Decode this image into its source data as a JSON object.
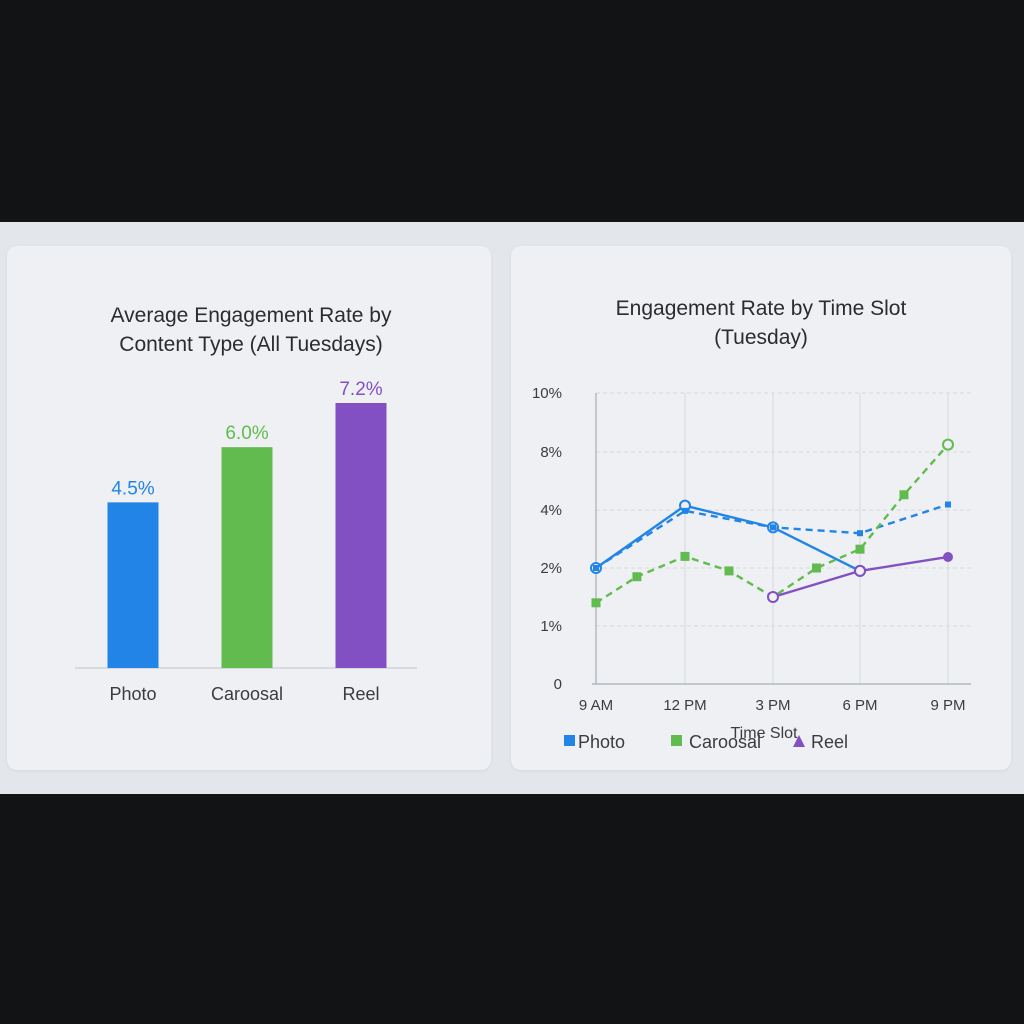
{
  "chart_data": [
    {
      "type": "bar",
      "title_lines": [
        "Average Engagement Rate by",
        "Content Type (All Tuesdays)"
      ],
      "categories": [
        "Photo",
        "Caroosal",
        "Reel"
      ],
      "values": [
        4.5,
        6.0,
        7.2
      ],
      "value_labels": [
        "4.5%",
        "6.0%",
        "7.2%"
      ],
      "colors": [
        "#2184e6",
        "#62bb4f",
        "#8350c4"
      ],
      "xlabel": "",
      "ylabel": "",
      "grid": false
    },
    {
      "type": "line",
      "title_lines": [
        "Engagement Rate by Time Slot",
        "(Tuesday)"
      ],
      "x": [
        "9 AM",
        "12 PM",
        "3 PM",
        "6 PM",
        "9 PM"
      ],
      "y_tick_labels": [
        "0",
        "1%",
        "2%",
        "4%",
        "8%",
        "10%"
      ],
      "xlabel": "Time Slot",
      "ylabel": "",
      "grid": true,
      "legend_position": "bottom",
      "legend": [
        {
          "label": "Photo",
          "marker": "square",
          "color": "#2184e6"
        },
        {
          "label": "Caroosal",
          "marker": "square",
          "color": "#62bb4f"
        },
        {
          "label": "Reel",
          "marker": "triangle",
          "color": "#8350c4"
        }
      ],
      "series": [
        {
          "color": "#2184e6",
          "style": "solid",
          "marker": "open-circle",
          "points": [
            [
              0,
              2.0
            ],
            [
              1,
              4.3
            ],
            [
              2,
              3.4
            ],
            [
              3,
              1.95
            ]
          ]
        },
        {
          "color": "#2184e6",
          "style": "dashed",
          "marker": "small-marker",
          "points": [
            [
              0,
              2.0
            ],
            [
              1,
              3.97
            ],
            [
              2,
              3.4
            ],
            [
              3,
              3.2
            ],
            [
              4,
              4.38
            ]
          ]
        },
        {
          "color": "#62bb4f",
          "style": "dashed",
          "marker": "square",
          "points": [
            [
              0,
              1.4
            ],
            [
              0.46,
              1.85
            ],
            [
              1,
              2.4
            ],
            [
              1.5,
              1.95
            ],
            [
              2,
              1.5
            ],
            [
              2.5,
              2.0
            ],
            [
              3,
              2.65
            ],
            [
              3.5,
              5.05
            ],
            [
              4,
              8.25
            ]
          ]
        },
        {
          "color": "#8350c4",
          "style": "solid",
          "marker": "circle",
          "points": [
            [
              2,
              1.5
            ],
            [
              3,
              1.95
            ],
            [
              4,
              2.38
            ]
          ]
        }
      ]
    }
  ]
}
